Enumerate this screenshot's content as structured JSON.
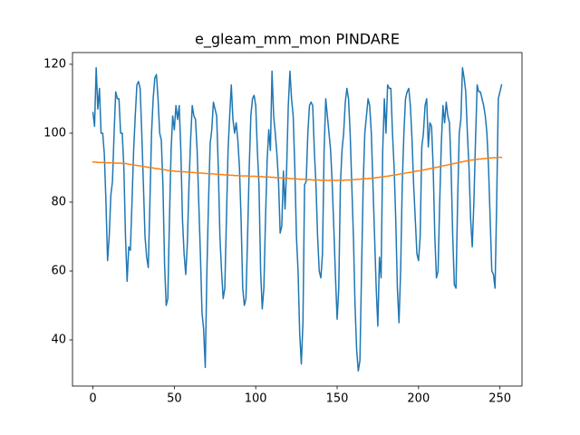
{
  "chart_data": {
    "type": "line",
    "title": "e_gleam_mm_mon PINDARE",
    "x": [
      0,
      1,
      2,
      3,
      4,
      5,
      6,
      7,
      8,
      9,
      10,
      11,
      12,
      13,
      14,
      15,
      16,
      17,
      18,
      19,
      20,
      21,
      22,
      23,
      24,
      25,
      26,
      27,
      28,
      29,
      30,
      31,
      32,
      33,
      34,
      35,
      36,
      37,
      38,
      39,
      40,
      41,
      42,
      43,
      44,
      45,
      46,
      47,
      48,
      49,
      50,
      51,
      52,
      53,
      54,
      55,
      56,
      57,
      58,
      59,
      60,
      61,
      62,
      63,
      64,
      65,
      66,
      67,
      68,
      69,
      70,
      71,
      72,
      73,
      74,
      75,
      76,
      77,
      78,
      79,
      80,
      81,
      82,
      83,
      84,
      85,
      86,
      87,
      88,
      89,
      90,
      91,
      92,
      93,
      94,
      95,
      96,
      97,
      98,
      99,
      100,
      101,
      102,
      103,
      104,
      105,
      106,
      107,
      108,
      109,
      110,
      111,
      112,
      113,
      114,
      115,
      116,
      117,
      118,
      119,
      120,
      121,
      122,
      123,
      124,
      125,
      126,
      127,
      128,
      129,
      130,
      131,
      132,
      133,
      134,
      135,
      136,
      137,
      138,
      139,
      140,
      141,
      142,
      143,
      144,
      145,
      146,
      147,
      148,
      149,
      150,
      151,
      152,
      153,
      154,
      155,
      156,
      157,
      158,
      159,
      160,
      161,
      162,
      163,
      164,
      165,
      166,
      167,
      168,
      169,
      170,
      171,
      172,
      173,
      174,
      175,
      176,
      177,
      178,
      179,
      180,
      181,
      182,
      183,
      184,
      185,
      186,
      187,
      188,
      189,
      190,
      191,
      192,
      193,
      194,
      195,
      196,
      197,
      198,
      199,
      200,
      201,
      202,
      203,
      204,
      205,
      206,
      207,
      208,
      209,
      210,
      211,
      212,
      213,
      214,
      215,
      216,
      217,
      218,
      219,
      220,
      221,
      222,
      223,
      224,
      225,
      226,
      227,
      228,
      229,
      230,
      231,
      232,
      233,
      234,
      235,
      236,
      237,
      238,
      239,
      240,
      241,
      242,
      243,
      244,
      245,
      246,
      247,
      248,
      249,
      250,
      251
    ],
    "series": [
      {
        "color": "#1f77b4",
        "values": [
          106,
          102,
          119,
          107,
          113,
          100,
          100,
          94,
          80,
          63,
          70,
          82,
          86,
          100,
          112,
          110,
          110,
          100,
          100,
          90,
          70,
          57,
          67,
          66,
          80,
          95,
          105,
          114,
          115,
          113,
          100,
          85,
          70,
          64,
          61,
          80,
          100,
          110,
          116,
          117,
          110,
          100,
          98,
          85,
          62,
          50,
          52,
          75,
          95,
          105,
          101,
          108,
          104,
          108,
          95,
          75,
          65,
          59,
          68,
          85,
          98,
          108,
          105,
          104,
          95,
          80,
          65,
          48,
          43,
          32,
          60,
          80,
          97,
          101,
          109,
          107,
          105,
          90,
          70,
          60,
          52,
          55,
          75,
          95,
          105,
          114,
          104,
          100,
          103,
          98,
          90,
          75,
          55,
          50,
          52,
          70,
          90,
          105,
          110,
          111,
          108,
          95,
          85,
          60,
          49,
          55,
          75,
          92,
          101,
          95,
          118,
          105,
          100,
          94,
          86,
          71,
          73,
          89,
          78,
          90,
          108,
          118,
          110,
          105,
          90,
          70,
          60,
          42,
          33,
          45,
          85,
          86,
          100,
          108,
          109,
          108,
          95,
          85,
          70,
          60,
          58,
          65,
          95,
          110,
          105,
          100,
          95,
          85,
          72,
          58,
          46,
          55,
          85,
          95,
          100,
          109,
          113,
          110,
          100,
          85,
          70,
          50,
          37,
          31,
          34,
          60,
          85,
          100,
          105,
          110,
          108,
          100,
          85,
          70,
          55,
          44,
          64,
          58,
          95,
          110,
          100,
          114,
          113,
          113,
          100,
          90,
          75,
          55,
          45,
          60,
          85,
          100,
          110,
          112,
          113,
          108,
          98,
          85,
          75,
          65,
          63,
          70,
          96,
          100,
          108,
          110,
          96,
          103,
          102,
          90,
          70,
          58,
          60,
          80,
          97,
          108,
          103,
          109,
          105,
          103,
          90,
          70,
          56,
          55,
          80,
          100,
          104,
          119,
          116,
          112,
          100,
          90,
          75,
          67,
          80,
          98,
          114,
          112,
          112,
          110,
          108,
          105,
          100,
          90,
          75,
          60,
          59,
          55,
          80,
          110,
          112,
          114
        ]
      },
      {
        "color": "#ff7f0e",
        "values": [
          91.6,
          91.6,
          91.6,
          91.5,
          91.5,
          91.5,
          91.5,
          91.5,
          91.4,
          91.4,
          91.4,
          91.4,
          91.4,
          91.3,
          91.3,
          91.3,
          91.3,
          91.3,
          91.2,
          91.2,
          91.2,
          91.1,
          91.0,
          90.9,
          90.9,
          90.8,
          90.7,
          90.6,
          90.6,
          90.5,
          90.4,
          90.3,
          90.3,
          90.2,
          90.1,
          90.0,
          90.0,
          89.9,
          89.8,
          89.7,
          89.7,
          89.6,
          89.5,
          89.4,
          89.4,
          89.3,
          89.2,
          89.1,
          89.1,
          89.0,
          89.0,
          88.9,
          88.9,
          88.9,
          88.8,
          88.8,
          88.8,
          88.7,
          88.7,
          88.7,
          88.6,
          88.6,
          88.6,
          88.5,
          88.5,
          88.5,
          88.4,
          88.4,
          88.4,
          88.3,
          88.3,
          88.3,
          88.2,
          88.2,
          88.2,
          88.1,
          88.1,
          88.1,
          88.0,
          88.0,
          88.0,
          87.9,
          87.9,
          87.9,
          87.8,
          87.8,
          87.8,
          87.7,
          87.7,
          87.7,
          87.7,
          87.6,
          87.6,
          87.6,
          87.6,
          87.6,
          87.5,
          87.5,
          87.5,
          87.5,
          87.5,
          87.4,
          87.4,
          87.4,
          87.4,
          87.3,
          87.3,
          87.3,
          87.3,
          87.2,
          87.2,
          87.2,
          87.1,
          87.1,
          87.1,
          87.0,
          87.0,
          87.0,
          86.9,
          86.9,
          86.9,
          86.8,
          86.8,
          86.8,
          86.7,
          86.7,
          86.7,
          86.6,
          86.6,
          86.6,
          86.6,
          86.5,
          86.5,
          86.5,
          86.5,
          86.4,
          86.4,
          86.4,
          86.4,
          86.4,
          86.3,
          86.3,
          86.3,
          86.3,
          86.3,
          86.3,
          86.3,
          86.3,
          86.3,
          86.3,
          86.3,
          86.3,
          86.3,
          86.3,
          86.3,
          86.4,
          86.4,
          86.4,
          86.4,
          86.5,
          86.5,
          86.5,
          86.6,
          86.6,
          86.6,
          86.7,
          86.7,
          86.8,
          86.8,
          86.8,
          86.9,
          86.9,
          87.0,
          87.0,
          87.1,
          87.1,
          87.2,
          87.3,
          87.3,
          87.4,
          87.5,
          87.5,
          87.6,
          87.7,
          87.8,
          87.8,
          87.9,
          88.0,
          88.1,
          88.2,
          88.2,
          88.3,
          88.4,
          88.5,
          88.6,
          88.6,
          88.7,
          88.8,
          88.9,
          89.0,
          89.0,
          89.1,
          89.2,
          89.3,
          89.4,
          89.5,
          89.6,
          89.7,
          89.8,
          89.9,
          90.0,
          90.1,
          90.2,
          90.3,
          90.4,
          90.5,
          90.6,
          90.7,
          90.8,
          90.9,
          91.0,
          91.1,
          91.2,
          91.3,
          91.4,
          91.5,
          91.6,
          91.7,
          91.8,
          91.9,
          92.0,
          92.1,
          92.2,
          92.2,
          92.3,
          92.4,
          92.4,
          92.5,
          92.5,
          92.6,
          92.6,
          92.7,
          92.7,
          92.8,
          92.8,
          92.8,
          92.9,
          92.9,
          92.9,
          93.0,
          93.0,
          93.0
        ]
      }
    ],
    "xlim": [
      -12.55,
      263.55
    ],
    "xticks": [
      0,
      50,
      100,
      150,
      200,
      250
    ],
    "ylim": [
      26.6,
      123.4
    ],
    "yticks": [
      40,
      60,
      80,
      100,
      120
    ]
  }
}
